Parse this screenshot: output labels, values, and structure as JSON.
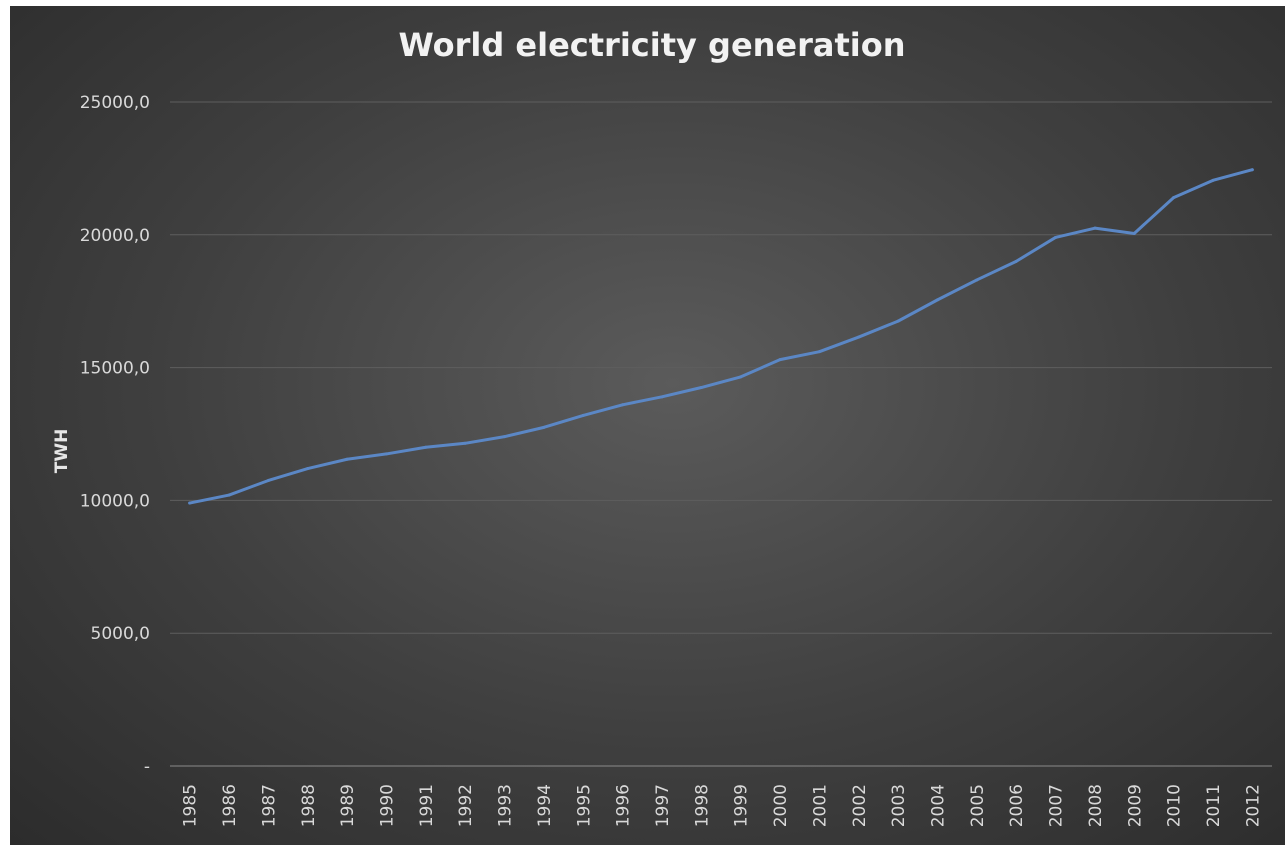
{
  "chart_data": {
    "type": "line",
    "title": "World electricity generation",
    "xlabel": "",
    "ylabel": "TWH",
    "ylim": [
      0,
      25000
    ],
    "y_ticks": [
      {
        "value": 0,
        "label": "-"
      },
      {
        "value": 5000,
        "label": "5000,0"
      },
      {
        "value": 10000,
        "label": "10000,0"
      },
      {
        "value": 15000,
        "label": "15000,0"
      },
      {
        "value": 20000,
        "label": "20000,0"
      },
      {
        "value": 25000,
        "label": "25000,0"
      }
    ],
    "grid": "horizontal",
    "legend": "none",
    "line_color": "#5b87c5",
    "categories": [
      "1985",
      "1986",
      "1987",
      "1988",
      "1989",
      "1990",
      "1991",
      "1992",
      "1993",
      "1994",
      "1995",
      "1996",
      "1997",
      "1998",
      "1999",
      "2000",
      "2001",
      "2002",
      "2003",
      "2004",
      "2005",
      "2006",
      "2007",
      "2008",
      "2009",
      "2010",
      "2011",
      "2012"
    ],
    "series": [
      {
        "values": [
          9900,
          10200,
          10750,
          11200,
          11550,
          11750,
          12000,
          12150,
          12400,
          12750,
          13200,
          13600,
          13900,
          14250,
          14650,
          15300,
          15600,
          16150,
          16750,
          17550,
          18300,
          19000,
          19900,
          20250,
          20050,
          21400,
          22050,
          22450
        ]
      }
    ]
  }
}
